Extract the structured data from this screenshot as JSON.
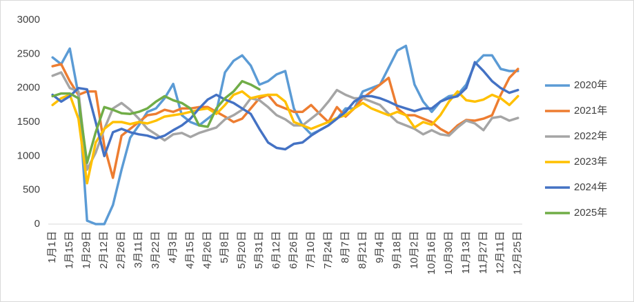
{
  "chart_data": {
    "type": "line",
    "categories": [
      "1月1日",
      null,
      "1月15日",
      null,
      "1月29日",
      null,
      "2月12日",
      null,
      "2月26日",
      null,
      "3月11日",
      null,
      "3月22日",
      null,
      "4月3日",
      null,
      "4月15日",
      null,
      "4月26日",
      null,
      "5月8日",
      null,
      "5月20日",
      null,
      "5月31日",
      null,
      "6月12日",
      null,
      "6月26日",
      null,
      "7月10日",
      null,
      "7月24日",
      null,
      "8月7日",
      null,
      "8月21日",
      null,
      "9月4日",
      null,
      "9月18日",
      null,
      "10月2日",
      null,
      "10月16日",
      null,
      "10月30日",
      null,
      "11月13日",
      null,
      "11月27日",
      null,
      "12月11日",
      null,
      "12月25日"
    ],
    "series": [
      {
        "name": "2020年",
        "color": "#5b9bd5",
        "values": [
          2450,
          2350,
          2580,
          1900,
          50,
          0,
          0,
          280,
          800,
          1270,
          1450,
          1650,
          1700,
          1850,
          2060,
          1600,
          1500,
          1450,
          1550,
          1650,
          2230,
          2400,
          2480,
          2330,
          2050,
          2100,
          2200,
          2250,
          1700,
          1450,
          1320,
          1380,
          1450,
          1550,
          1700,
          1700,
          1950,
          2000,
          2050,
          2300,
          2550,
          2620,
          2050,
          1800,
          1650,
          1800,
          1880,
          1900,
          2050,
          2350,
          2480,
          2480,
          2280,
          2250,
          2250
        ]
      },
      {
        "name": "2021年",
        "color": "#ed7d31",
        "values": [
          2320,
          2350,
          2100,
          1900,
          1950,
          1950,
          1150,
          680,
          1300,
          1400,
          1500,
          1600,
          1620,
          1680,
          1650,
          1700,
          1700,
          1720,
          1720,
          1650,
          1580,
          1500,
          1550,
          1700,
          1850,
          1900,
          1750,
          1700,
          1650,
          1650,
          1750,
          1620,
          1500,
          1720,
          1580,
          1700,
          1850,
          1950,
          2050,
          2150,
          1700,
          1600,
          1600,
          1550,
          1500,
          1400,
          1330,
          1450,
          1530,
          1520,
          1550,
          1600,
          1900,
          2150,
          2280
        ]
      },
      {
        "name": "2022年",
        "color": "#a5a5a5",
        "values": [
          2180,
          2230,
          2000,
          1950,
          800,
          1050,
          1400,
          1700,
          1780,
          1680,
          1550,
          1400,
          1320,
          1230,
          1320,
          1340,
          1280,
          1340,
          1380,
          1420,
          1540,
          1600,
          1680,
          1850,
          1820,
          1720,
          1600,
          1540,
          1450,
          1450,
          1550,
          1650,
          1800,
          1970,
          1900,
          1850,
          1850,
          1800,
          1750,
          1620,
          1500,
          1450,
          1400,
          1320,
          1380,
          1320,
          1300,
          1420,
          1520,
          1480,
          1380,
          1560,
          1580,
          1520,
          1560
        ]
      },
      {
        "name": "2023年",
        "color": "#ffc000",
        "values": [
          1750,
          1850,
          1900,
          1550,
          600,
          1200,
          1400,
          1500,
          1500,
          1470,
          1500,
          1480,
          1520,
          1580,
          1600,
          1620,
          1650,
          1680,
          1700,
          1620,
          1750,
          1900,
          1950,
          1850,
          1880,
          1900,
          1900,
          1800,
          1500,
          1450,
          1400,
          1450,
          1500,
          1560,
          1600,
          1700,
          1780,
          1700,
          1650,
          1600,
          1650,
          1600,
          1420,
          1500,
          1460,
          1600,
          1800,
          1950,
          1820,
          1800,
          1830,
          1900,
          1850,
          1750,
          1880
        ]
      },
      {
        "name": "2024年",
        "color": "#4472c4",
        "values": [
          1900,
          1800,
          1880,
          2000,
          1980,
          1500,
          1000,
          1350,
          1400,
          1350,
          1320,
          1300,
          1260,
          1300,
          1380,
          1450,
          1550,
          1700,
          1830,
          1900,
          1830,
          1780,
          1700,
          1620,
          1400,
          1200,
          1120,
          1100,
          1180,
          1200,
          1300,
          1380,
          1450,
          1550,
          1650,
          1800,
          1880,
          1880,
          1850,
          1800,
          1740,
          1700,
          1660,
          1700,
          1700,
          1800,
          1850,
          1880,
          2000,
          2380,
          2250,
          2100,
          2000,
          1930,
          1970
        ]
      },
      {
        "name": "2025年",
        "color": "#70ad47",
        "values": [
          1880,
          1920,
          1920,
          1850,
          900,
          1350,
          1720,
          1680,
          1630,
          1620,
          1650,
          1700,
          1800,
          1880,
          1820,
          1780,
          1700,
          1450,
          1430,
          1700,
          1850,
          1950,
          2100,
          2050,
          1980,
          null,
          null,
          null,
          null,
          null,
          null,
          null,
          null,
          null,
          null,
          null,
          null,
          null,
          null,
          null,
          null,
          null,
          null,
          null,
          null,
          null,
          null,
          null,
          null,
          null,
          null,
          null,
          null,
          null,
          null
        ]
      }
    ],
    "ylim": [
      0,
      3000
    ],
    "yticks": [
      0,
      500,
      1000,
      1500,
      2000,
      2500,
      3000
    ],
    "grid": false,
    "legend": "right"
  }
}
